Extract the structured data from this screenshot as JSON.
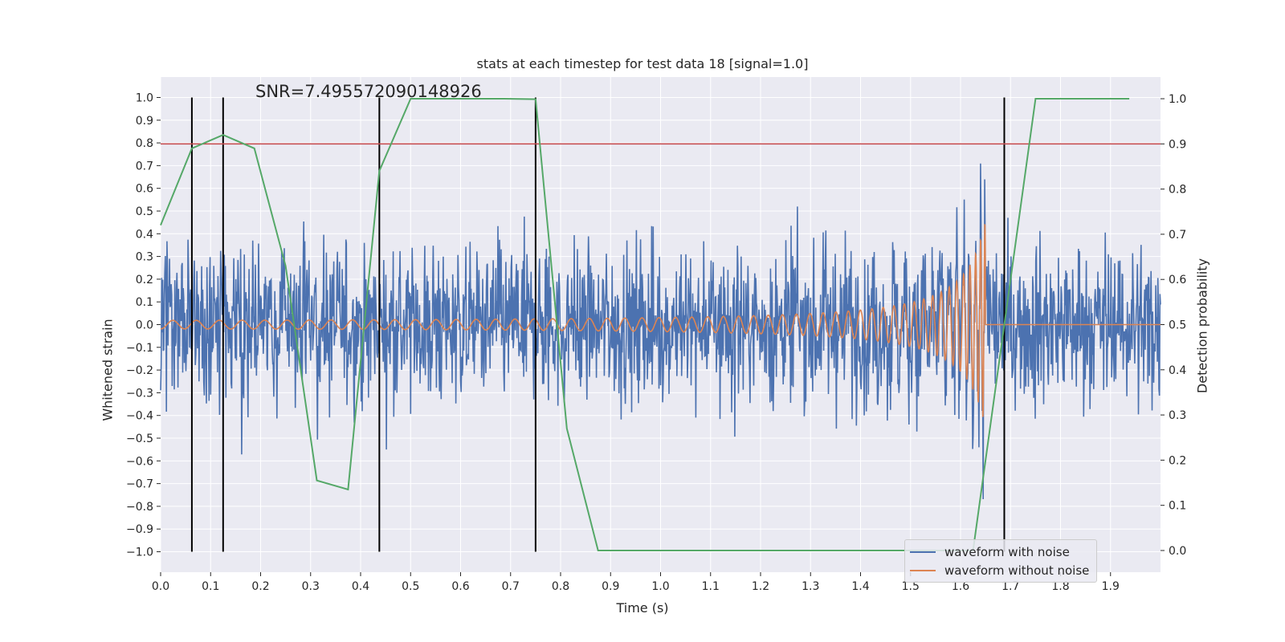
{
  "chart_data": {
    "type": "line",
    "title": "stats at each timestep for test data 18 [signal=1.0]",
    "annotation": "SNR=7.495572090148926",
    "xlabel": "Time (s)",
    "ylabel_left": "Whitened strain",
    "ylabel_right": "Detection probability",
    "xlim": [
      0.0,
      2.0
    ],
    "ylim_left": [
      -1.09,
      1.09
    ],
    "ylim_right": [
      -0.048,
      1.048
    ],
    "x_ticks": [
      "0.0",
      "0.1",
      "0.2",
      "0.3",
      "0.4",
      "0.5",
      "0.6",
      "0.7",
      "0.8",
      "0.9",
      "1.0",
      "1.1",
      "1.2",
      "1.3",
      "1.4",
      "1.5",
      "1.6",
      "1.7",
      "1.8",
      "1.9"
    ],
    "y_left_ticks": [
      "1.0",
      "0.9",
      "0.8",
      "0.7",
      "0.6",
      "0.5",
      "0.4",
      "0.3",
      "0.2",
      "0.1",
      "0.0",
      "−0.1",
      "−0.2",
      "−0.3",
      "−0.4",
      "−0.5",
      "−0.6",
      "−0.7",
      "−0.8",
      "−0.9",
      "−1.0"
    ],
    "y_right_ticks": [
      "1.0",
      "0.9",
      "0.8",
      "0.7",
      "0.6",
      "0.5",
      "0.4",
      "0.3",
      "0.2",
      "0.1",
      "0.0"
    ],
    "threshold": {
      "axis": "right",
      "value": 0.9,
      "color": "#c44e52"
    },
    "detection_times": [
      0.0625,
      0.125,
      0.4375,
      0.75,
      1.6875
    ],
    "detection_probability": {
      "color": "#55a868",
      "x": [
        0.0,
        0.0625,
        0.125,
        0.1875,
        0.25,
        0.3125,
        0.375,
        0.4375,
        0.5,
        0.5625,
        0.625,
        0.6875,
        0.75,
        0.8125,
        0.875,
        0.9375,
        1.0,
        1.0625,
        1.125,
        1.1875,
        1.25,
        1.3125,
        1.375,
        1.4375,
        1.5,
        1.5625,
        1.625,
        1.6875,
        1.75,
        1.8125,
        1.875,
        1.9375
      ],
      "y": [
        0.72,
        0.89,
        0.92,
        0.89,
        0.63,
        0.155,
        0.135,
        0.84,
        1.0,
        1.0,
        1.0,
        1.0,
        0.999,
        0.27,
        0.0,
        0.0,
        0.0,
        0.0,
        0.0,
        0.0,
        0.0,
        0.0,
        0.0,
        0.0,
        0.0,
        0.0,
        0.0,
        0.5,
        1.0,
        1.0,
        1.0,
        1.0
      ]
    },
    "series": [
      {
        "name": "waveform with noise",
        "color": "#4c72b0",
        "amplitude_range": [
          -1.0,
          1.0
        ]
      },
      {
        "name": "waveform without noise",
        "color": "#dd8452",
        "peak_time": 1.64,
        "peak_amplitude": 0.49
      }
    ]
  }
}
